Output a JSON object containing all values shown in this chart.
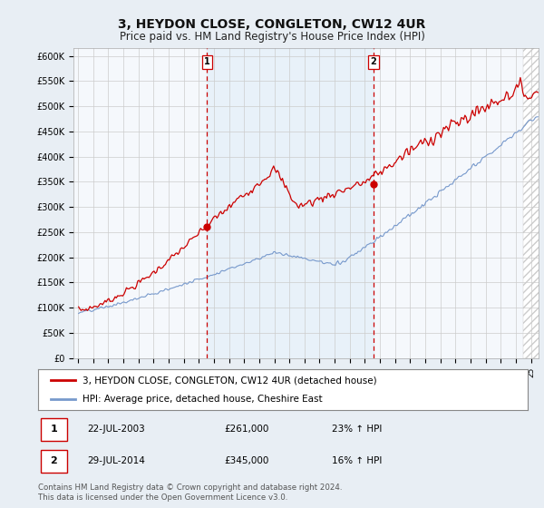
{
  "title": "3, HEYDON CLOSE, CONGLETON, CW12 4UR",
  "subtitle": "Price paid vs. HM Land Registry's House Price Index (HPI)",
  "title_fontsize": 10,
  "subtitle_fontsize": 8.5,
  "ylabel_ticks": [
    "£0",
    "£50K",
    "£100K",
    "£150K",
    "£200K",
    "£250K",
    "£300K",
    "£350K",
    "£400K",
    "£450K",
    "£500K",
    "£550K",
    "£600K"
  ],
  "ytick_values": [
    0,
    50000,
    100000,
    150000,
    200000,
    250000,
    300000,
    350000,
    400000,
    450000,
    500000,
    550000,
    600000
  ],
  "ylim": [
    0,
    615000
  ],
  "background_color": "#e8eef4",
  "plot_bg_color": "#f5f8fc",
  "red_line_color": "#cc0000",
  "blue_line_color": "#7799cc",
  "vline_color": "#cc0000",
  "shade_color": "#d0e4f5",
  "hatch_color": "#cccccc",
  "sale_x1": 2003.55,
  "sale_x2": 2014.58,
  "marker1_value": 261000,
  "marker2_value": 345000,
  "legend_label_red": "3, HEYDON CLOSE, CONGLETON, CW12 4UR (detached house)",
  "legend_label_blue": "HPI: Average price, detached house, Cheshire East",
  "annotation1_date": "22-JUL-2003",
  "annotation1_price": "£261,000",
  "annotation1_hpi": "23% ↑ HPI",
  "annotation2_date": "29-JUL-2014",
  "annotation2_price": "£345,000",
  "annotation2_hpi": "16% ↑ HPI",
  "footer": "Contains HM Land Registry data © Crown copyright and database right 2024.\nThis data is licensed under the Open Government Licence v3.0.",
  "xlim_left": 1994.7,
  "xlim_right": 2025.5,
  "hatch_start": 2024.5
}
